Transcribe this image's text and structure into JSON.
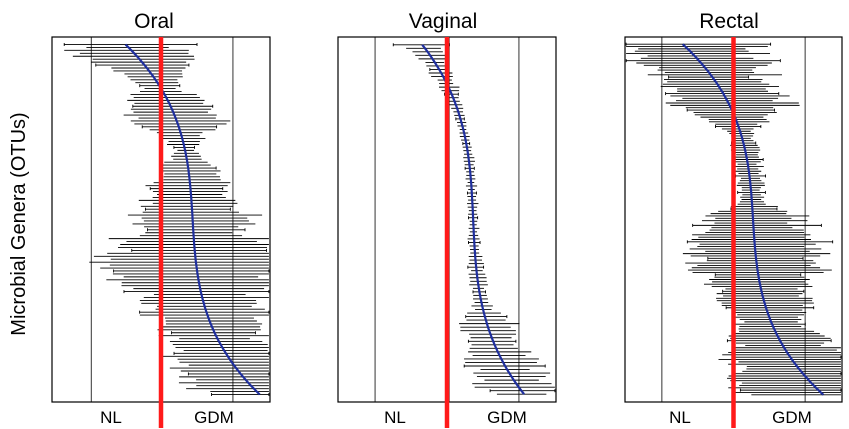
{
  "y_axis_label": "Microbial Genera (OTUs)",
  "colors": {
    "reference_line": "#ff1a1a",
    "point_trend": "#1f2f9e",
    "error_bars": "#000000",
    "grid": "#000000"
  },
  "chart_data": [
    {
      "type": "forest",
      "title": "Oral",
      "x_tick_labels": [
        "NL",
        "GDM"
      ],
      "n_features": 120,
      "point_estimate_curve": {
        "start": -0.17,
        "end": 0.46,
        "s_shape": true
      },
      "ci_halfwidth_profile": [
        [
          0.0,
          0.23
        ],
        [
          0.04,
          0.28
        ],
        [
          0.12,
          0.08
        ],
        [
          0.2,
          0.22
        ],
        [
          0.3,
          0.04
        ],
        [
          0.42,
          0.2
        ],
        [
          0.52,
          0.26
        ],
        [
          0.62,
          0.42
        ],
        [
          0.72,
          0.28
        ],
        [
          0.82,
          0.22
        ],
        [
          0.9,
          0.26
        ],
        [
          1.0,
          0.28
        ]
      ],
      "grid": true
    },
    {
      "type": "forest",
      "title": "Vaginal",
      "x_tick_labels": [
        "NL",
        "GDM"
      ],
      "n_features": 100,
      "point_estimate_curve": {
        "start": -0.12,
        "end": 0.36,
        "s_shape": true
      },
      "ci_halfwidth_profile": [
        [
          0.0,
          0.12
        ],
        [
          0.03,
          0.06
        ],
        [
          0.08,
          0.05
        ],
        [
          0.2,
          0.02
        ],
        [
          0.5,
          0.02
        ],
        [
          0.75,
          0.04
        ],
        [
          0.8,
          0.12
        ],
        [
          0.88,
          0.13
        ],
        [
          0.96,
          0.18
        ],
        [
          1.0,
          0.16
        ]
      ],
      "grid": true
    },
    {
      "type": "forest",
      "title": "Rectal",
      "x_tick_labels": [
        "NL",
        "GDM"
      ],
      "n_features": 150,
      "point_estimate_curve": {
        "start": -0.24,
        "end": 0.42,
        "s_shape": true
      },
      "ci_halfwidth_profile": [
        [
          0.0,
          0.3
        ],
        [
          0.06,
          0.28
        ],
        [
          0.12,
          0.22
        ],
        [
          0.18,
          0.24
        ],
        [
          0.25,
          0.06
        ],
        [
          0.45,
          0.05
        ],
        [
          0.5,
          0.22
        ],
        [
          0.6,
          0.3
        ],
        [
          0.7,
          0.2
        ],
        [
          0.8,
          0.14
        ],
        [
          0.9,
          0.3
        ],
        [
          1.0,
          0.34
        ]
      ],
      "grid": true
    }
  ]
}
